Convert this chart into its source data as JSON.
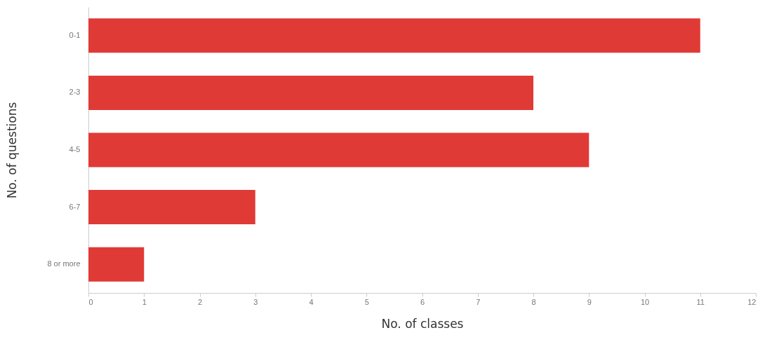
{
  "chart_data": {
    "type": "bar",
    "orientation": "horizontal",
    "xlabel": "No. of classes",
    "ylabel": "No. of questions",
    "categories": [
      "0-1",
      "2-3",
      "4-5",
      "6-7",
      "8 or more"
    ],
    "values": [
      11,
      8,
      9,
      3,
      1
    ],
    "color": "#e03a37",
    "xlim": [
      0,
      12
    ],
    "xticks": [
      0,
      1,
      2,
      3,
      4,
      5,
      6,
      7,
      8,
      9,
      10,
      11,
      12
    ],
    "grid": false
  }
}
